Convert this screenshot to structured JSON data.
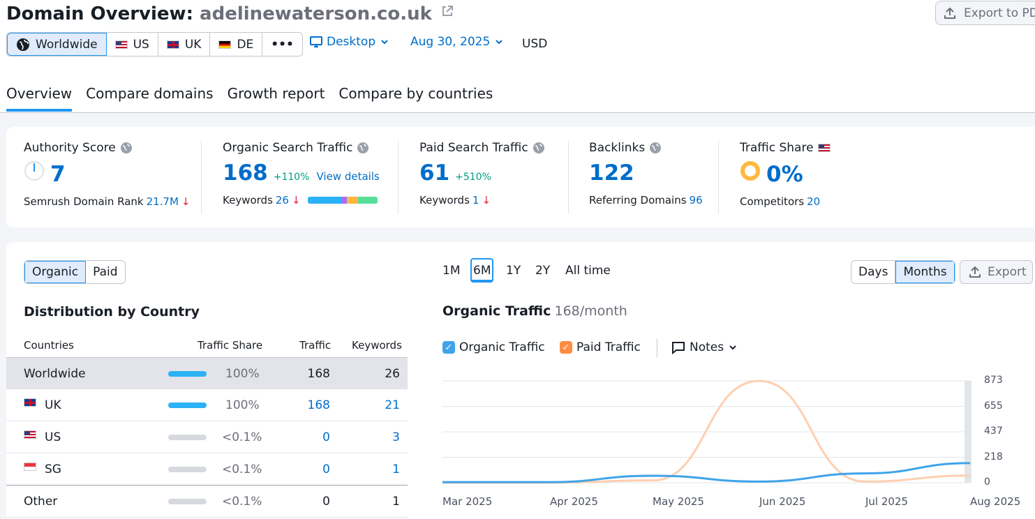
{
  "header": {
    "title_prefix": "Domain Overview:",
    "domain": "adelinewaterson.co.uk",
    "export_pdf": "Export to PD"
  },
  "regions": [
    {
      "label": "Worldwide",
      "icon": "globe-icon",
      "active": true
    },
    {
      "label": "US",
      "icon": "flag-us-icon"
    },
    {
      "label": "UK",
      "icon": "flag-uk-icon"
    },
    {
      "label": "DE",
      "icon": "flag-de-icon"
    },
    {
      "label": "•••",
      "icon": "more-icon"
    }
  ],
  "filters": {
    "device": "Desktop",
    "date": "Aug 30, 2025",
    "currency": "USD"
  },
  "tabs": [
    "Overview",
    "Compare domains",
    "Growth report",
    "Compare by countries"
  ],
  "metrics": {
    "authority": {
      "label": "Authority Score",
      "value": "7",
      "sub_label": "Semrush Domain Rank",
      "sub_value": "21.7M"
    },
    "organic": {
      "label": "Organic Search Traffic",
      "value": "168",
      "change": "+110%",
      "link": "View details",
      "sub_label": "Keywords",
      "sub_value": "26"
    },
    "paid": {
      "label": "Paid Search Traffic",
      "value": "61",
      "change": "+510%",
      "sub_label": "Keywords",
      "sub_value": "1"
    },
    "backlinks": {
      "label": "Backlinks",
      "value": "122",
      "sub_label": "Referring Domains",
      "sub_value": "96"
    },
    "share": {
      "label": "Traffic Share",
      "value": "0%",
      "sub_label": "Competitors",
      "sub_value": "20"
    }
  },
  "panel": {
    "toggle": [
      "Organic",
      "Paid"
    ],
    "distribution_title": "Distribution by Country",
    "columns": [
      "Countries",
      "Traffic Share",
      "Traffic",
      "Keywords"
    ],
    "rows": [
      {
        "country": "Worldwide",
        "flag": "",
        "share": "100%",
        "traffic": "168",
        "keywords": "26",
        "share_fraction": 1.0
      },
      {
        "country": "UK",
        "flag": "uk",
        "share": "100%",
        "traffic": "168",
        "keywords": "21",
        "share_fraction": 1.0
      },
      {
        "country": "US",
        "flag": "us",
        "share": "<0.1%",
        "traffic": "0",
        "keywords": "3",
        "share_fraction": 0
      },
      {
        "country": "SG",
        "flag": "sg",
        "share": "<0.1%",
        "traffic": "0",
        "keywords": "1",
        "share_fraction": 0
      },
      {
        "country": "Other",
        "flag": "",
        "share": "<0.1%",
        "traffic": "0",
        "keywords": "1",
        "share_fraction": 0
      }
    ]
  },
  "chart_controls": {
    "ranges": [
      "1M",
      "6M",
      "1Y",
      "2Y",
      "All time"
    ],
    "active_range": "6M",
    "granularity": [
      "Days",
      "Months"
    ],
    "active_granularity": "Months",
    "export": "Export",
    "title": "Organic Traffic",
    "subtitle": "168/month",
    "legend_organic": "Organic Traffic",
    "legend_paid": "Paid Traffic",
    "notes": "Notes"
  },
  "chart_data": {
    "type": "line",
    "x": [
      "Mar 2025",
      "Apr 2025",
      "May 2025",
      "Jun 2025",
      "Jul 2025",
      "Aug 2025"
    ],
    "yticks": [
      "873",
      "655",
      "437",
      "218",
      "0"
    ],
    "ylim": [
      0,
      873
    ],
    "series": [
      {
        "name": "Organic Traffic",
        "color": "#3ea4ea",
        "values": [
          5,
          5,
          60,
          10,
          80,
          168
        ]
      },
      {
        "name": "Paid Traffic",
        "color": "#ffcfb0",
        "values": [
          0,
          0,
          20,
          873,
          10,
          61
        ]
      }
    ]
  },
  "colors": {
    "accent": "#006dca",
    "positive": "#009f81",
    "negative": "#e6213c"
  }
}
